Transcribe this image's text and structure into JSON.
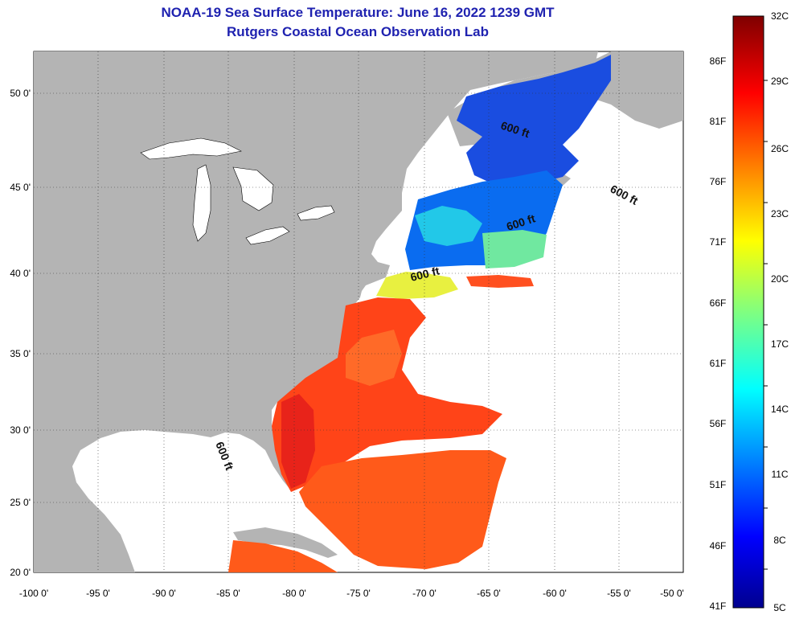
{
  "title": "NOAA-19 Sea Surface Temperature:  June 16, 2022 1239 GMT",
  "subtitle": "Rutgers Coastal Ocean Observation Lab",
  "axes": {
    "lon_ticks": [
      "-100 0'",
      "-95 0'",
      "-90 0'",
      "-85 0'",
      "-80 0'",
      "-75 0'",
      "-70 0'",
      "-65 0'",
      "-60 0'",
      "-55 0'",
      "-50 0'"
    ],
    "lat_ticks": [
      "50 0'",
      "45 0'",
      "40 0'",
      "35 0'",
      "30 0'",
      "25 0'",
      "20 0'"
    ]
  },
  "contour_labels": [
    "600 ft",
    "600 ft",
    "600 ft",
    "600 ft",
    "600 ft"
  ],
  "colorbar": {
    "fahrenheit": [
      "86F",
      "81F",
      "76F",
      "71F",
      "66F",
      "61F",
      "56F",
      "51F",
      "46F",
      "41F"
    ],
    "celsius": [
      "32C",
      "29C",
      "26C",
      "23C",
      "20C",
      "17C",
      "14C",
      "11C",
      "8C",
      "5C"
    ]
  },
  "colors": {
    "land": "#b4b4b4",
    "water_nodata": "#ffffff",
    "title": "#1f22b0"
  }
}
